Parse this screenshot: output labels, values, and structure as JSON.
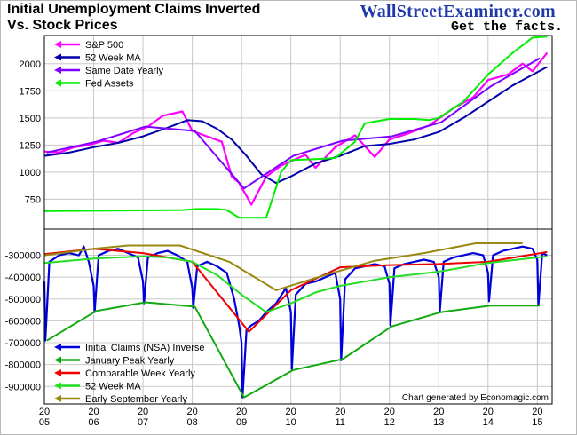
{
  "title_line1": "Initial Unemployment Claims Inverted",
  "title_line2": "Vs. Stock Prices",
  "brand": "WallStreetExaminer.com",
  "tagline": "Get the facts.",
  "credit": "Chart generated by Economagic.com",
  "colors": {
    "sp500": "#ff00ff",
    "ma52_top": "#0000aa",
    "same_date": "#8000ff",
    "fed": "#00ee00",
    "claims": "#0000dd",
    "jan_peak": "#11aa11",
    "comparable": "#ee0000",
    "ma52_bottom": "#22dd22",
    "sept": "#998811",
    "grid": "#c8c8c8"
  },
  "chart_data": [
    {
      "type": "line",
      "title": "",
      "y_ticks": [
        750,
        1000,
        1250,
        1500,
        1750,
        2000
      ],
      "ylim": [
        475,
        2260
      ],
      "legend_position": "top-left",
      "series": [
        {
          "name": "S&P 500",
          "color_key": "sp500",
          "x": [
            2005.0,
            2005.3,
            2005.6,
            2005.9,
            2006.2,
            2006.5,
            2006.8,
            2007.1,
            2007.4,
            2007.8,
            2008.0,
            2008.3,
            2008.6,
            2008.8,
            2008.95,
            2009.2,
            2009.5,
            2009.8,
            2010.3,
            2010.5,
            2010.9,
            2011.3,
            2011.7,
            2012.0,
            2012.4,
            2012.8,
            2013.3,
            2013.7,
            2014.0,
            2014.4,
            2014.7,
            2014.9,
            2015.2
          ],
          "y": [
            1190,
            1180,
            1230,
            1250,
            1290,
            1270,
            1360,
            1420,
            1520,
            1560,
            1380,
            1330,
            1280,
            960,
            900,
            700,
            960,
            1060,
            1160,
            1040,
            1230,
            1340,
            1140,
            1300,
            1360,
            1430,
            1590,
            1690,
            1850,
            1900,
            2000,
            1930,
            2100
          ]
        },
        {
          "name": "52 Week MA",
          "color_key": "ma52_top",
          "x": [
            2005.0,
            2005.5,
            2006.0,
            2006.5,
            2007.0,
            2007.5,
            2007.9,
            2008.2,
            2008.5,
            2008.8,
            2009.1,
            2009.4,
            2009.7,
            2010.0,
            2010.5,
            2011.0,
            2011.5,
            2012.0,
            2012.5,
            2013.0,
            2013.5,
            2014.0,
            2014.5,
            2015.2
          ],
          "y": [
            1150,
            1180,
            1230,
            1270,
            1330,
            1410,
            1480,
            1470,
            1400,
            1300,
            1150,
            980,
            900,
            960,
            1080,
            1150,
            1240,
            1260,
            1300,
            1370,
            1500,
            1650,
            1800,
            1970
          ]
        },
        {
          "name": "Same Date Yearly",
          "color_key": "same_date",
          "x": [
            2005.05,
            2006.05,
            2007.05,
            2008.05,
            2009.05,
            2010.05,
            2011.05,
            2012.05,
            2013.05,
            2014.05,
            2015.05
          ],
          "y": [
            1180,
            1280,
            1420,
            1380,
            850,
            1150,
            1290,
            1330,
            1460,
            1790,
            2050
          ]
        },
        {
          "name": "Fed Assets",
          "color_key": "fed",
          "x": [
            2005.0,
            2007.8,
            2008.1,
            2008.5,
            2008.7,
            2008.95,
            2009.2,
            2009.5,
            2009.8,
            2010.0,
            2010.5,
            2010.9,
            2011.3,
            2011.5,
            2012.0,
            2012.5,
            2012.8,
            2013.0,
            2013.5,
            2014.0,
            2014.5,
            2014.9,
            2015.2
          ],
          "y": [
            640,
            650,
            660,
            660,
            650,
            580,
            580,
            580,
            1000,
            1110,
            1120,
            1130,
            1280,
            1450,
            1490,
            1490,
            1480,
            1500,
            1650,
            1900,
            2100,
            2240,
            2250
          ]
        }
      ]
    },
    {
      "type": "line",
      "title": "",
      "y_ticks": [
        -300000,
        -400000,
        -500000,
        -600000,
        -700000,
        -800000,
        -900000
      ],
      "ylim": [
        -980000,
        -180000
      ],
      "legend_position": "bottom-left",
      "xlabel": "",
      "x_ticks": [
        {
          "v": 2005,
          "l1": "20",
          "l2": "05"
        },
        {
          "v": 2006,
          "l1": "20",
          "l2": "06"
        },
        {
          "v": 2007,
          "l1": "20",
          "l2": "07"
        },
        {
          "v": 2008,
          "l1": "20",
          "l2": "08"
        },
        {
          "v": 2009,
          "l1": "20",
          "l2": "09"
        },
        {
          "v": 2010,
          "l1": "20",
          "l2": "10"
        },
        {
          "v": 2011,
          "l1": "20",
          "l2": "11"
        },
        {
          "v": 2012,
          "l1": "20",
          "l2": "12"
        },
        {
          "v": 2013,
          "l1": "20",
          "l2": "13"
        },
        {
          "v": 2014,
          "l1": "20",
          "l2": "14"
        },
        {
          "v": 2015,
          "l1": "20",
          "l2": "15"
        }
      ],
      "xlim": [
        2005.0,
        2015.3
      ],
      "series": [
        {
          "name": "Initial Claims (NSA) Inverse",
          "color_key": "claims",
          "x": [
            2005.0,
            2005.02,
            2005.1,
            2005.3,
            2005.5,
            2005.7,
            2005.8,
            2005.9,
            2006.0,
            2006.02,
            2006.1,
            2006.3,
            2006.5,
            2006.7,
            2006.9,
            2007.0,
            2007.02,
            2007.1,
            2007.3,
            2007.5,
            2007.7,
            2007.9,
            2008.0,
            2008.02,
            2008.1,
            2008.3,
            2008.5,
            2008.7,
            2008.85,
            2008.95,
            2009.0,
            2009.02,
            2009.1,
            2009.2,
            2009.35,
            2009.5,
            2009.7,
            2009.9,
            2010.0,
            2010.02,
            2010.1,
            2010.3,
            2010.5,
            2010.7,
            2010.9,
            2011.0,
            2011.02,
            2011.1,
            2011.3,
            2011.5,
            2011.7,
            2011.9,
            2012.0,
            2012.02,
            2012.1,
            2012.3,
            2012.5,
            2012.7,
            2012.9,
            2013.0,
            2013.02,
            2013.1,
            2013.3,
            2013.5,
            2013.7,
            2013.9,
            2014.0,
            2014.02,
            2014.1,
            2014.3,
            2014.5,
            2014.7,
            2014.9,
            2015.0,
            2015.02,
            2015.1,
            2015.2
          ],
          "y": [
            -420000,
            -690000,
            -330000,
            -300000,
            -290000,
            -300000,
            -260000,
            -330000,
            -440000,
            -560000,
            -300000,
            -280000,
            -270000,
            -290000,
            -310000,
            -420000,
            -520000,
            -310000,
            -290000,
            -280000,
            -300000,
            -330000,
            -450000,
            -540000,
            -350000,
            -330000,
            -350000,
            -380000,
            -500000,
            -620000,
            -700000,
            -950000,
            -640000,
            -620000,
            -600000,
            -560000,
            -520000,
            -450000,
            -560000,
            -820000,
            -480000,
            -430000,
            -420000,
            -400000,
            -380000,
            -500000,
            -780000,
            -410000,
            -360000,
            -350000,
            -340000,
            -350000,
            -430000,
            -620000,
            -360000,
            -340000,
            -330000,
            -320000,
            -330000,
            -400000,
            -560000,
            -330000,
            -310000,
            -300000,
            -290000,
            -300000,
            -380000,
            -510000,
            -300000,
            -280000,
            -270000,
            -260000,
            -270000,
            -320000,
            -530000,
            -290000,
            -300000
          ]
        },
        {
          "name": "January Peak Yearly",
          "color_key": "jan_peak",
          "x": [
            2005.05,
            2006.05,
            2007.05,
            2008.05,
            2009.05,
            2010.05,
            2011.05,
            2012.05,
            2013.05,
            2014.05,
            2015.05
          ],
          "y": [
            -690000,
            -555000,
            -515000,
            -535000,
            -950000,
            -825000,
            -775000,
            -625000,
            -560000,
            -530000,
            -530000
          ]
        },
        {
          "name": "Comparable Week Yearly",
          "color_key": "comparable",
          "x": [
            2005.0,
            2006.0,
            2007.0,
            2008.0,
            2009.15,
            2010.0,
            2011.0,
            2012.0,
            2013.0,
            2014.0,
            2015.2
          ],
          "y": [
            -295000,
            -270000,
            -290000,
            -330000,
            -650000,
            -460000,
            -355000,
            -345000,
            -340000,
            -330000,
            -285000
          ]
        },
        {
          "name": "52 Week MA",
          "color_key": "ma52_bottom",
          "x": [
            2005.0,
            2006.0,
            2007.0,
            2007.5,
            2008.0,
            2008.5,
            2009.0,
            2009.5,
            2010.0,
            2010.5,
            2011.0,
            2012.0,
            2013.0,
            2014.0,
            2015.2
          ],
          "y": [
            -335000,
            -315000,
            -305000,
            -310000,
            -330000,
            -390000,
            -480000,
            -560000,
            -520000,
            -470000,
            -440000,
            -400000,
            -375000,
            -335000,
            -305000
          ]
        },
        {
          "name": "Early September Yearly",
          "color_key": "sept",
          "x": [
            2005.0,
            2006.0,
            2006.7,
            2007.75,
            2008.75,
            2009.7,
            2010.7,
            2011.7,
            2012.7,
            2013.75,
            2014.7
          ],
          "y": [
            -300000,
            -270000,
            -255000,
            -255000,
            -330000,
            -460000,
            -390000,
            -325000,
            -290000,
            -245000,
            -245000
          ]
        }
      ]
    }
  ]
}
